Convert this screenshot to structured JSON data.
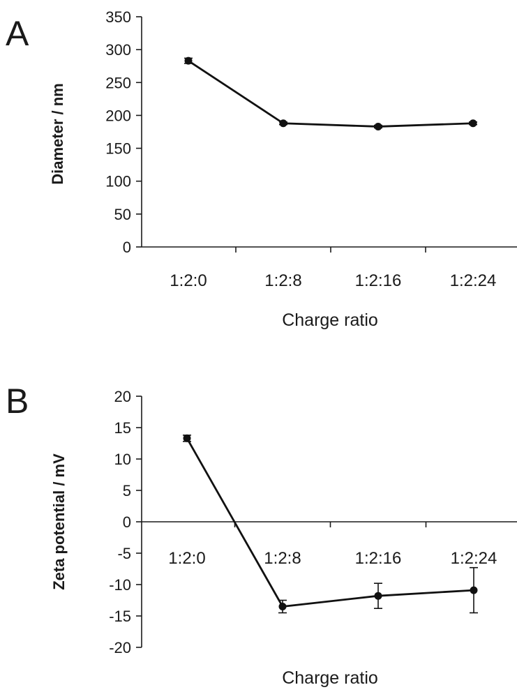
{
  "panels": [
    {
      "letter": "A"
    },
    {
      "letter": "B"
    }
  ],
  "chart_data": [
    {
      "type": "line",
      "panel": "A",
      "title": "",
      "xlabel": "Charge ratio",
      "ylabel": "Diameter / nm",
      "categories": [
        "1:2:0",
        "1:2:8",
        "1:2:16",
        "1:2:24"
      ],
      "yticks": [
        "0",
        "50",
        "100",
        "150",
        "200",
        "250",
        "300",
        "350"
      ],
      "ylim": [
        0,
        350
      ],
      "xlabel_position": "below-axis",
      "series": [
        {
          "values": [
            283,
            188,
            183,
            188
          ],
          "errors": [
            4,
            2,
            2,
            2
          ]
        }
      ],
      "grid": false,
      "legend": "none",
      "colors": {
        "line": "#111111",
        "marker": "#111111"
      }
    },
    {
      "type": "line",
      "panel": "B",
      "title": "",
      "xlabel": "Charge ratio",
      "ylabel": "Zeta potential / mV",
      "categories": [
        "1:2:0",
        "1:2:8",
        "1:2:16",
        "1:2:24"
      ],
      "yticks": [
        "-20",
        "-15",
        "-10",
        "-5",
        "0",
        "5",
        "10",
        "15",
        "20"
      ],
      "ylim": [
        -20,
        20
      ],
      "xlabel_position": "at-zero-line",
      "series": [
        {
          "values": [
            13.3,
            -13.5,
            -11.8,
            -10.9
          ],
          "errors": [
            0.5,
            1.0,
            2.0,
            3.6
          ]
        }
      ],
      "grid": false,
      "legend": "none",
      "colors": {
        "line": "#111111",
        "marker": "#111111"
      }
    }
  ]
}
